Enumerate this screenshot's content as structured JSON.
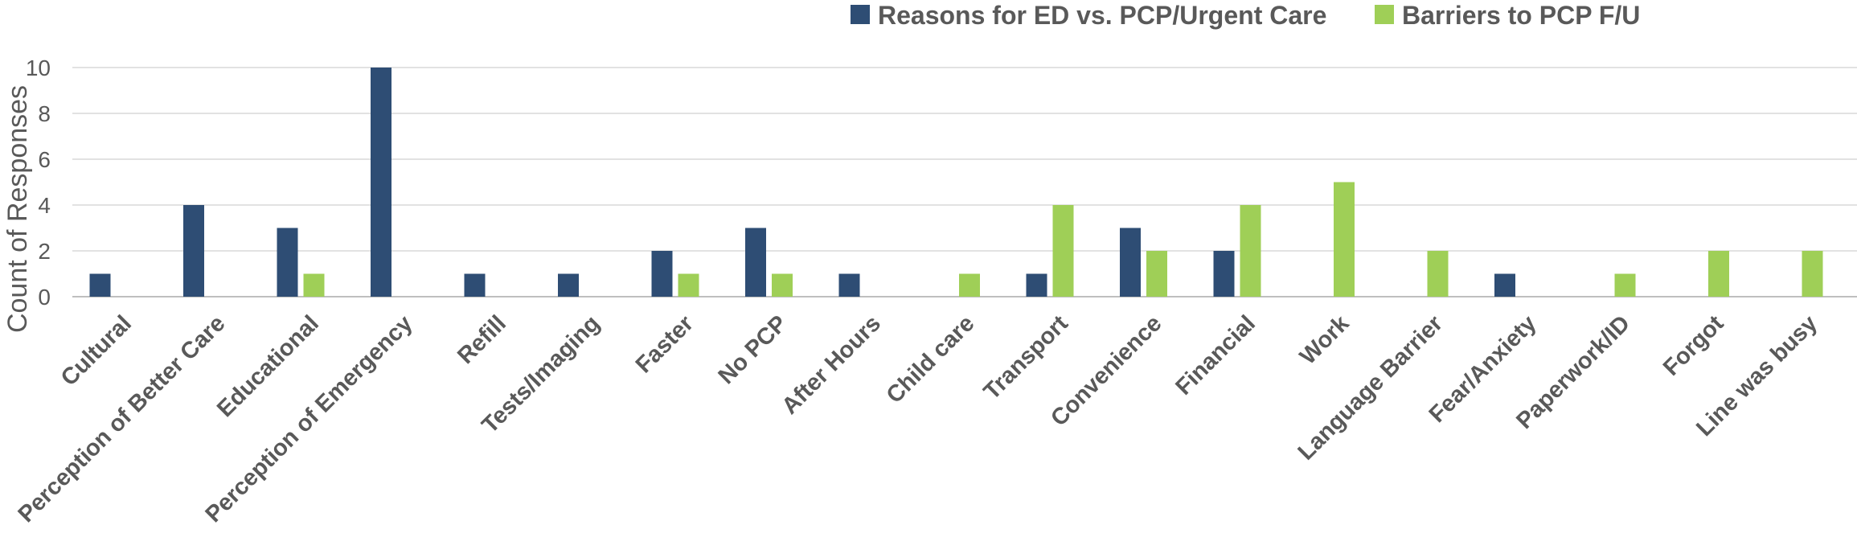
{
  "chart_data": {
    "type": "bar",
    "title": "",
    "xlabel": "",
    "ylabel": "Count of Responses",
    "ylim": [
      0,
      10
    ],
    "yticks": [
      0,
      2,
      4,
      6,
      8,
      10
    ],
    "grid": true,
    "legend_position": "top-right",
    "categories": [
      "Cultural",
      "Perception of Better Care",
      "Educational",
      "Perception of Emergency",
      "Refill",
      "Tests/Imaging",
      "Faster",
      "No PCP",
      "After Hours",
      "Child care",
      "Transport",
      "Convenience",
      "Financial",
      "Work",
      "Language Barrier",
      "Fear/Anxiety",
      "Paperwork/ID",
      "Forgot",
      "Line was busy"
    ],
    "series": [
      {
        "name": "Reasons for ED vs. PCP/Urgent Care",
        "color": "#2e4d74",
        "values": [
          1,
          4,
          3,
          10,
          1,
          1,
          2,
          3,
          1,
          0,
          1,
          3,
          2,
          0,
          0,
          1,
          0,
          0,
          0
        ]
      },
      {
        "name": "Barriers to PCP F/U",
        "color": "#9fcf57",
        "values": [
          0,
          0,
          1,
          0,
          0,
          0,
          1,
          1,
          0,
          1,
          4,
          2,
          4,
          5,
          2,
          0,
          1,
          2,
          2
        ]
      }
    ]
  }
}
